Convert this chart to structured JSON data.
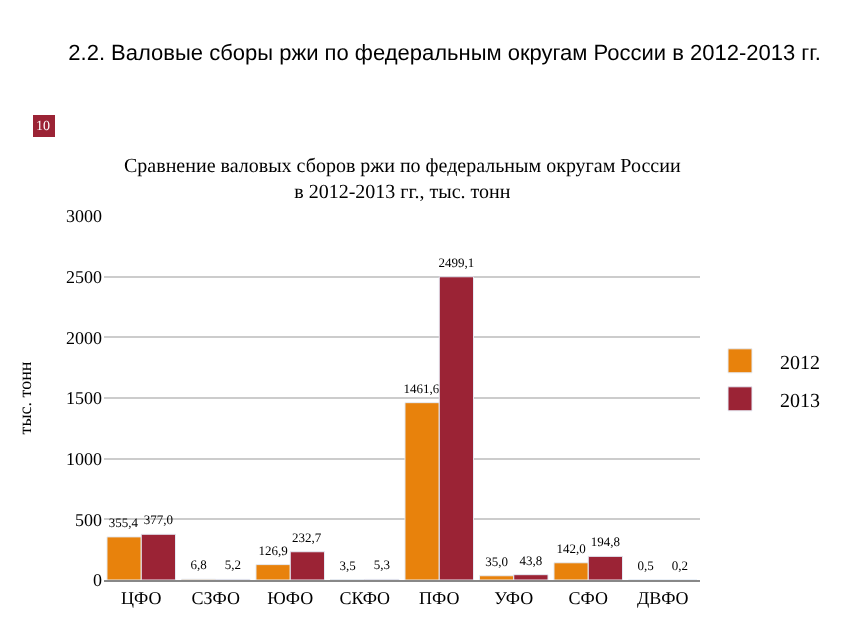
{
  "chart_data": {
    "type": "bar",
    "title": "2.2. Валовые сборы ржи по федеральным округам России в 2012-2013 гг.",
    "subtitle": "Сравнение валовых сборов ржи по федеральным округам России в 2012-2013 гг., тыс. тонн",
    "ylabel": "тыс. тонн",
    "annotations": [
      "10"
    ],
    "categories": [
      "ЦФО",
      "СЗФО",
      "ЮФО",
      "СКФО",
      "ПФО",
      "УФО",
      "СФО",
      "ДВФО"
    ],
    "series": [
      {
        "name": "2012",
        "color": "#e8820c",
        "values": [
          355.4,
          6.8,
          126.9,
          3.5,
          1461.6,
          35.0,
          142.0,
          0.5
        ],
        "value_labels": [
          "355,4",
          "6,8",
          "126,9",
          "3,5",
          "1461,6",
          "35,0",
          "142,0",
          "0,5"
        ]
      },
      {
        "name": "2013",
        "color": "#9b2335",
        "values": [
          377.0,
          5.2,
          232.7,
          5.3,
          2499.1,
          43.8,
          194.8,
          0.2
        ],
        "value_labels": [
          "377,0",
          "5,2",
          "232,7",
          "5,3",
          "2499,1",
          "43,8",
          "194,8",
          "0,2"
        ]
      }
    ],
    "ylim": [
      0,
      3000
    ],
    "yticks": [
      0,
      500,
      1000,
      1500,
      2000,
      2500,
      3000
    ],
    "grid": "y",
    "legend": "right"
  }
}
